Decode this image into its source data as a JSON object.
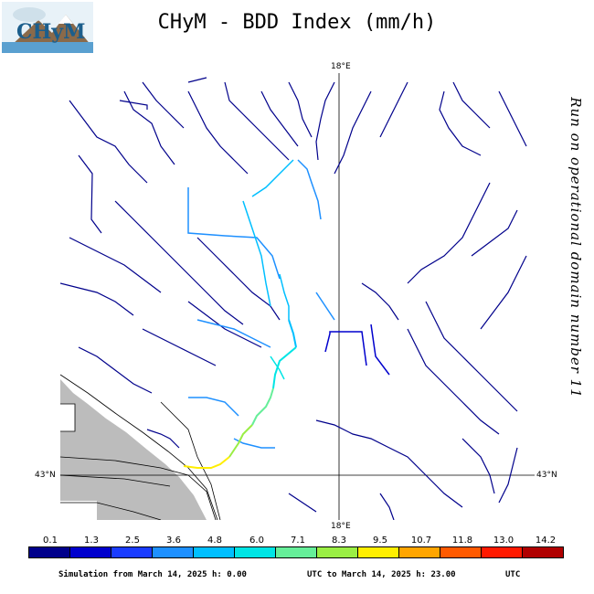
{
  "title": "CHyM - BDD Index (mm/h)",
  "logo_text": "CHyM",
  "side_note": "Run on operational domain number 11",
  "axes": {
    "lon_top": "18°E",
    "lon_bottom": "18°E",
    "lat_left": "43°N",
    "lat_right": "43°N"
  },
  "legend": {
    "values": [
      "0.1",
      "1.3",
      "2.5",
      "3.6",
      "4.8",
      "6.0",
      "7.1",
      "8.3",
      "9.5",
      "10.7",
      "11.8",
      "13.0",
      "14.2"
    ],
    "colors": [
      "#00008b",
      "#0000cd",
      "#1a3cff",
      "#1e90ff",
      "#00bfff",
      "#00e5e5",
      "#66ee99",
      "#9aee44",
      "#ffee00",
      "#ffa500",
      "#ff5a00",
      "#ff1a00",
      "#b00000"
    ]
  },
  "footer": {
    "from": "Simulation from March 14, 2025 h: 0.00",
    "to": "UTC to March 14, 2025 h: 23.00",
    "tz": "UTC"
  },
  "colors": {
    "land_gray": "#bcbcbc",
    "river_base": "#00008b"
  }
}
